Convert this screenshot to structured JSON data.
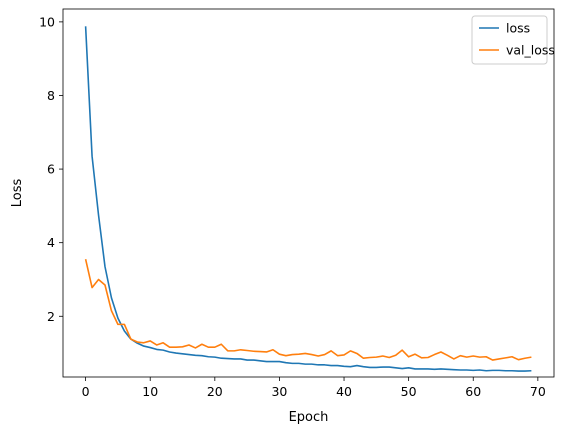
{
  "chart_data": {
    "type": "line",
    "title": "",
    "xlabel": "Epoch",
    "ylabel": "Loss",
    "xlim": [
      -3.5,
      72.5
    ],
    "ylim": [
      0.35,
      10.35
    ],
    "xticks": [
      0,
      10,
      20,
      30,
      40,
      50,
      60,
      70
    ],
    "yticks": [
      2,
      4,
      6,
      8,
      10
    ],
    "grid": false,
    "legend_position": "top-right",
    "series": [
      {
        "name": "loss",
        "color": "#1f77b4",
        "x": [
          0,
          1,
          2,
          3,
          4,
          5,
          6,
          7,
          8,
          9,
          10,
          11,
          12,
          13,
          14,
          15,
          16,
          17,
          18,
          19,
          20,
          21,
          22,
          23,
          24,
          25,
          26,
          27,
          28,
          29,
          30,
          31,
          32,
          33,
          34,
          35,
          36,
          37,
          38,
          39,
          40,
          41,
          42,
          43,
          44,
          45,
          46,
          47,
          48,
          49,
          50,
          51,
          52,
          53,
          54,
          55,
          56,
          57,
          58,
          59,
          60,
          61,
          62,
          63,
          64,
          65,
          66,
          67,
          68,
          69
        ],
        "values": [
          9.88,
          6.35,
          4.75,
          3.35,
          2.5,
          1.95,
          1.6,
          1.38,
          1.27,
          1.19,
          1.15,
          1.1,
          1.08,
          1.03,
          1.0,
          0.98,
          0.96,
          0.94,
          0.93,
          0.9,
          0.89,
          0.86,
          0.85,
          0.84,
          0.84,
          0.81,
          0.81,
          0.79,
          0.77,
          0.77,
          0.77,
          0.74,
          0.72,
          0.72,
          0.7,
          0.7,
          0.68,
          0.68,
          0.66,
          0.66,
          0.64,
          0.63,
          0.66,
          0.63,
          0.61,
          0.61,
          0.62,
          0.62,
          0.6,
          0.58,
          0.6,
          0.57,
          0.57,
          0.57,
          0.56,
          0.57,
          0.56,
          0.55,
          0.54,
          0.54,
          0.53,
          0.54,
          0.52,
          0.53,
          0.53,
          0.52,
          0.52,
          0.51,
          0.51,
          0.52
        ]
      },
      {
        "name": "val_loss",
        "color": "#ff7f0e",
        "x": [
          0,
          1,
          2,
          3,
          4,
          5,
          6,
          7,
          8,
          9,
          10,
          11,
          12,
          13,
          14,
          15,
          16,
          17,
          18,
          19,
          20,
          21,
          22,
          23,
          24,
          25,
          26,
          27,
          28,
          29,
          30,
          31,
          32,
          33,
          34,
          35,
          36,
          37,
          38,
          39,
          40,
          41,
          42,
          43,
          44,
          45,
          46,
          47,
          48,
          49,
          50,
          51,
          52,
          53,
          54,
          55,
          56,
          57,
          58,
          59,
          60,
          61,
          62,
          63,
          64,
          65,
          66,
          67,
          68,
          69
        ],
        "values": [
          3.55,
          2.78,
          3.0,
          2.85,
          2.15,
          1.78,
          1.78,
          1.38,
          1.3,
          1.28,
          1.33,
          1.22,
          1.28,
          1.16,
          1.16,
          1.17,
          1.22,
          1.14,
          1.24,
          1.16,
          1.16,
          1.24,
          1.06,
          1.06,
          1.09,
          1.07,
          1.05,
          1.04,
          1.03,
          1.09,
          0.97,
          0.93,
          0.96,
          0.97,
          0.99,
          0.96,
          0.92,
          0.96,
          1.06,
          0.93,
          0.95,
          1.06,
          0.99,
          0.86,
          0.88,
          0.89,
          0.92,
          0.88,
          0.94,
          1.08,
          0.9,
          0.97,
          0.87,
          0.88,
          0.96,
          1.03,
          0.94,
          0.84,
          0.93,
          0.89,
          0.92,
          0.89,
          0.9,
          0.81,
          0.84,
          0.87,
          0.9,
          0.82,
          0.86,
          0.89
        ]
      }
    ]
  }
}
